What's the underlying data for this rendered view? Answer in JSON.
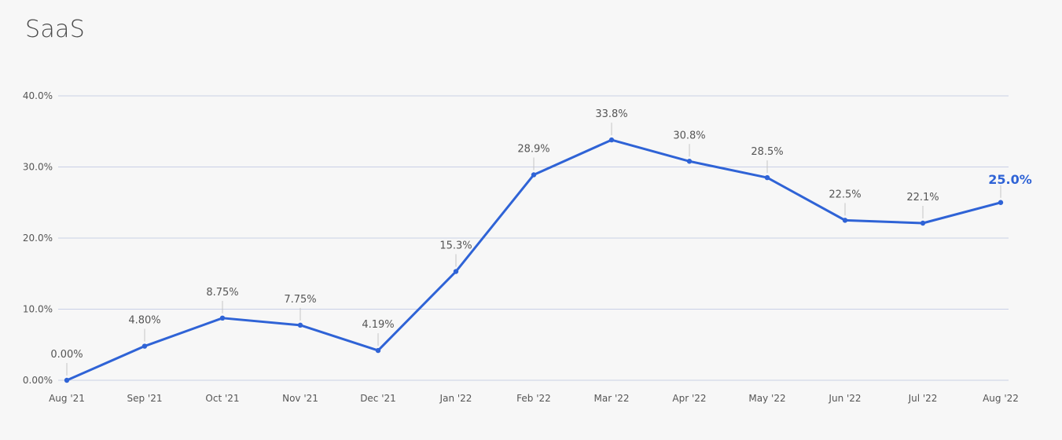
{
  "header": {
    "title": "SaaS"
  },
  "colors": {
    "line": "#2f63d6",
    "grid": "#c9d0e6",
    "label": "#555555"
  },
  "chart_data": {
    "type": "line",
    "title": "SaaS",
    "xlabel": "",
    "ylabel": "",
    "ylim": [
      0,
      40
    ],
    "grid": true,
    "yticks": [
      "0.00%",
      "10.0%",
      "20.0%",
      "30.0%",
      "40.0%"
    ],
    "categories": [
      "Aug '21",
      "Sep '21",
      "Oct '21",
      "Nov '21",
      "Dec '21",
      "Jan '22",
      "Feb '22",
      "Mar '22",
      "Apr '22",
      "May '22",
      "Jun '22",
      "Jul '22",
      "Aug '22"
    ],
    "series": [
      {
        "values": [
          0.0,
          4.8,
          8.75,
          7.75,
          4.19,
          15.3,
          28.9,
          33.8,
          30.8,
          28.5,
          22.5,
          22.1,
          25.0
        ],
        "labels": [
          "0.00%",
          "4.80%",
          "8.75%",
          "7.75%",
          "4.19%",
          "15.3%",
          "28.9%",
          "33.8%",
          "30.8%",
          "28.5%",
          "22.5%",
          "22.1%",
          "25.0%"
        ]
      }
    ]
  }
}
